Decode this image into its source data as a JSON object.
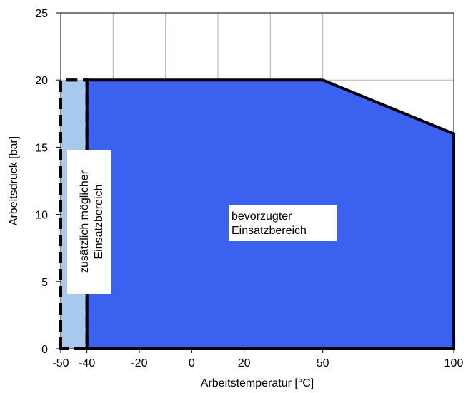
{
  "chart_data": {
    "type": "area",
    "title": "",
    "xlabel": "Arbeitstemperatur [°C]",
    "ylabel": "Arbeitsdruck [bar]",
    "xlim": [
      -50,
      100
    ],
    "ylim": [
      0,
      25
    ],
    "x_ticks": [
      -50,
      -40,
      -20,
      0,
      20,
      50,
      100
    ],
    "x_gridlines": [
      -30,
      -10,
      10,
      30,
      50,
      100
    ],
    "y_ticks": [
      0,
      5,
      10,
      15,
      20,
      25
    ],
    "grid": true,
    "regions": [
      {
        "label": "zusätzlich möglicher Einsatzbereich",
        "label_lines": [
          "zusätzlich möglicher",
          "Einsatzbereich"
        ],
        "color": "#a9c8ee",
        "border": "dashed",
        "points": [
          [
            -50,
            0
          ],
          [
            -50,
            20
          ],
          [
            -40,
            20
          ],
          [
            -40,
            0
          ]
        ]
      },
      {
        "label": "bevorzugter Einsatzbereich",
        "label_lines": [
          "bevorzugter",
          "Einsatzbereich"
        ],
        "color": "#3a62ee",
        "border": "solid",
        "points": [
          [
            -40,
            0
          ],
          [
            -40,
            20
          ],
          [
            50,
            20
          ],
          [
            100,
            16
          ],
          [
            100,
            0
          ]
        ]
      }
    ]
  }
}
